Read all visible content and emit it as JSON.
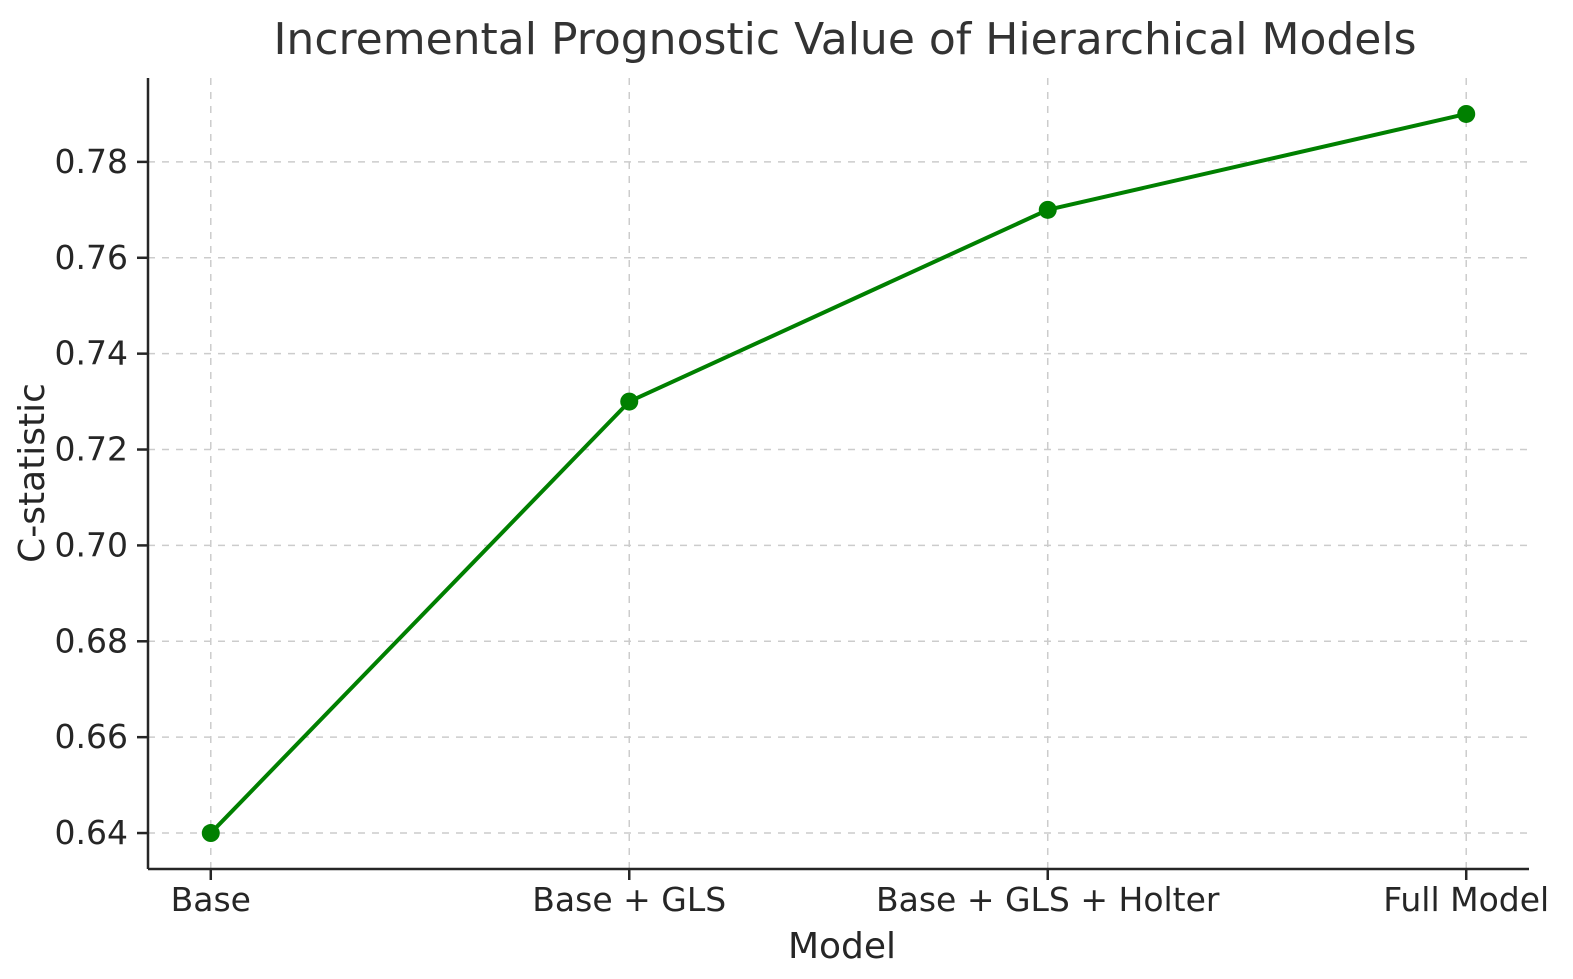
{
  "chart_data": {
    "type": "line",
    "title": "Incremental Prognostic Value of Hierarchical Models",
    "xlabel": "Model",
    "ylabel": "C-statistic",
    "categories": [
      "Base",
      "Base + GLS",
      "Base + GLS + Holter",
      "Full Model"
    ],
    "series": [
      {
        "name": "C-statistic",
        "values": [
          0.64,
          0.73,
          0.77,
          0.79
        ]
      }
    ],
    "ylim": [
      0.6325,
      0.7975
    ],
    "yticks": [
      0.64,
      0.66,
      0.68,
      0.7,
      0.72,
      0.74,
      0.76,
      0.78
    ],
    "ytick_format_decimals": 2,
    "grid": true,
    "grid_style": "dashed",
    "legend": false,
    "colors": {
      "line": "#008000",
      "marker": "#008000",
      "grid": "#cccccc",
      "spine": "#262626",
      "text": "#262626"
    }
  }
}
